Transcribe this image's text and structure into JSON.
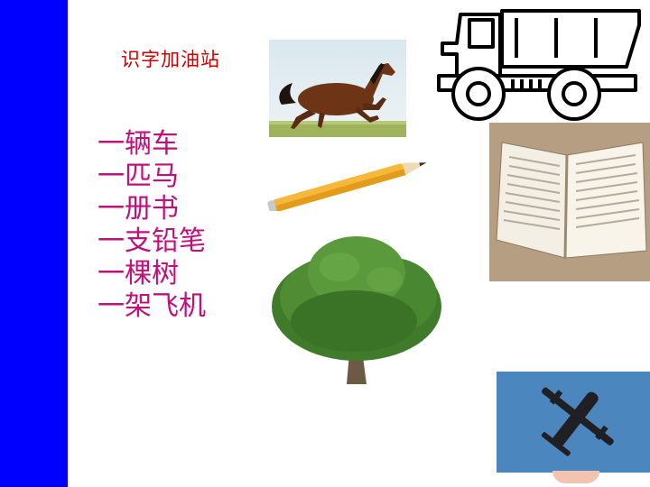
{
  "title": "识字加油站",
  "phrases": [
    "一辆车",
    "一匹马",
    "一册书",
    "一支铅笔",
    "一棵树",
    "一架飞机"
  ],
  "colors": {
    "sidebar": "#0000ff",
    "title": "#cc0000",
    "phrase": "#c0107a"
  },
  "pictures": [
    "horse",
    "truck",
    "pencil",
    "book",
    "tree",
    "airplane"
  ]
}
